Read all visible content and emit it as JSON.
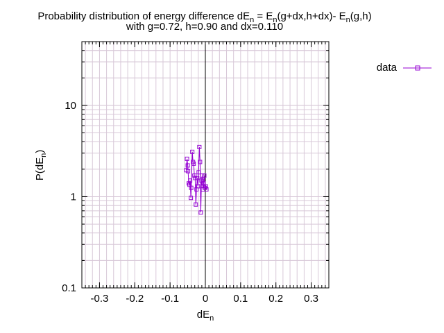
{
  "chart_data": {
    "type": "scatter",
    "title_prefix": "Probability distribution of energy difference ",
    "title_line2": "with g=0.72, h=0.90 and dx=0.110",
    "xlabel_base": "dE",
    "xlabel_sub": "n",
    "ylabel_prefix": "P(dE",
    "ylabel_sub": "n",
    "ylabel_suffix": ")",
    "x_ticks": [
      {
        "v": -0.3,
        "label": "-0.3"
      },
      {
        "v": -0.2,
        "label": "-0.2"
      },
      {
        "v": -0.1,
        "label": "-0.1"
      },
      {
        "v": 0,
        "label": "0"
      },
      {
        "v": 0.1,
        "label": "0.1"
      },
      {
        "v": 0.2,
        "label": "0.2"
      },
      {
        "v": 0.3,
        "label": "0.3"
      }
    ],
    "y_ticks": [
      {
        "v": 0.1,
        "label": "0.1"
      },
      {
        "v": 1,
        "label": "1"
      },
      {
        "v": 10,
        "label": "10"
      }
    ],
    "xlim": [
      -0.35,
      0.35
    ],
    "ylim": [
      0.1,
      50
    ],
    "y_scale": "log",
    "grid": true,
    "zero_line": true,
    "legend_position": "outside-top-right",
    "colors": {
      "series": "#9400d3",
      "grid": "#d8c8d8",
      "axis": "#000000"
    },
    "series": [
      {
        "name": "data",
        "points": [
          {
            "x": -0.054,
            "y": 1.95
          },
          {
            "x": -0.052,
            "y": 2.6
          },
          {
            "x": -0.05,
            "y": 2.2
          },
          {
            "x": -0.049,
            "y": 1.9
          },
          {
            "x": -0.047,
            "y": 1.4
          },
          {
            "x": -0.045,
            "y": 1.35
          },
          {
            "x": -0.043,
            "y": 1.5
          },
          {
            "x": -0.041,
            "y": 0.97
          },
          {
            "x": -0.04,
            "y": 1.25
          },
          {
            "x": -0.037,
            "y": 3.1
          },
          {
            "x": -0.035,
            "y": 2.4
          },
          {
            "x": -0.033,
            "y": 2.3
          },
          {
            "x": -0.031,
            "y": 1.7
          },
          {
            "x": -0.029,
            "y": 1.6
          },
          {
            "x": -0.027,
            "y": 0.82
          },
          {
            "x": -0.025,
            "y": 1.2
          },
          {
            "x": -0.023,
            "y": 1.6
          },
          {
            "x": -0.021,
            "y": 1.3
          },
          {
            "x": -0.019,
            "y": 1.85
          },
          {
            "x": -0.017,
            "y": 3.5
          },
          {
            "x": -0.015,
            "y": 2.4
          },
          {
            "x": -0.013,
            "y": 0.67
          },
          {
            "x": -0.011,
            "y": 1.5
          },
          {
            "x": -0.009,
            "y": 1.7
          },
          {
            "x": -0.007,
            "y": 1.2
          },
          {
            "x": -0.005,
            "y": 1.4
          },
          {
            "x": -0.003,
            "y": 1.7
          },
          {
            "x": -0.001,
            "y": 1.25
          },
          {
            "x": 0.001,
            "y": 1.3
          },
          {
            "x": 0.003,
            "y": 1.2
          }
        ]
      }
    ]
  }
}
